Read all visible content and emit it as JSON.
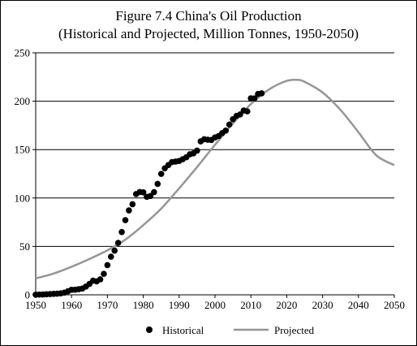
{
  "chart_data": {
    "type": "line",
    "title": "Figure 7.4 China's Oil Production",
    "subtitle": "(Historical and Projected, Million Tonnes, 1950-2050)",
    "xlabel": "",
    "ylabel": "",
    "xlim": [
      1950,
      2050
    ],
    "ylim": [
      0,
      250
    ],
    "x_ticks": [
      1950,
      1960,
      1970,
      1980,
      1990,
      2000,
      2010,
      2020,
      2030,
      2040,
      2050
    ],
    "y_ticks": [
      0,
      50,
      100,
      150,
      200,
      250
    ],
    "grid": "horizontal",
    "legend_position": "bottom",
    "series": [
      {
        "name": "Historical",
        "kind": "scatter",
        "color": "#000000",
        "x": [
          1950,
          1951,
          1952,
          1953,
          1954,
          1955,
          1956,
          1957,
          1958,
          1959,
          1960,
          1961,
          1962,
          1963,
          1964,
          1965,
          1966,
          1967,
          1968,
          1969,
          1970,
          1971,
          1972,
          1973,
          1974,
          1975,
          1976,
          1977,
          1978,
          1979,
          1980,
          1981,
          1982,
          1983,
          1984,
          1985,
          1986,
          1987,
          1988,
          1989,
          1990,
          1991,
          1992,
          1993,
          1994,
          1995,
          1996,
          1997,
          1998,
          1999,
          2000,
          2001,
          2002,
          2003,
          2004,
          2005,
          2006,
          2007,
          2008,
          2009,
          2010,
          2011,
          2012,
          2013
        ],
        "y": [
          0.2,
          0.3,
          0.4,
          0.6,
          0.8,
          1.0,
          1.2,
          1.5,
          2.3,
          3.7,
          5.2,
          5.3,
          5.8,
          6.5,
          8.5,
          11.3,
          14.6,
          13.9,
          16.0,
          21.7,
          30.7,
          39.4,
          45.7,
          53.6,
          64.9,
          77.1,
          87.2,
          93.6,
          104.1,
          106.2,
          105.9,
          101.2,
          102.1,
          106.1,
          114.6,
          124.9,
          130.7,
          134.1,
          137.1,
          137.6,
          138.3,
          140.1,
          142.1,
          145.2,
          146.1,
          149.0,
          158.5,
          160.7,
          160.2,
          160.0,
          162.6,
          164.0,
          167.0,
          169.6,
          175.9,
          181.4,
          184.8,
          186.3,
          190.4,
          189.5,
          203.0,
          202.9,
          207.5,
          208.1
        ]
      },
      {
        "name": "Projected",
        "kind": "line",
        "color": "#969696",
        "x": [
          1950,
          1955,
          1960,
          1965,
          1970,
          1975,
          1980,
          1985,
          1990,
          1995,
          2000,
          2005,
          2010,
          2015,
          2020,
          2023,
          2025,
          2030,
          2035,
          2040,
          2045,
          2050
        ],
        "y": [
          17,
          22,
          29,
          37,
          46,
          57,
          72,
          89,
          110,
          132,
          155,
          177,
          197,
          212,
          221,
          222,
          220,
          209,
          191,
          168,
          144,
          134
        ]
      }
    ]
  }
}
